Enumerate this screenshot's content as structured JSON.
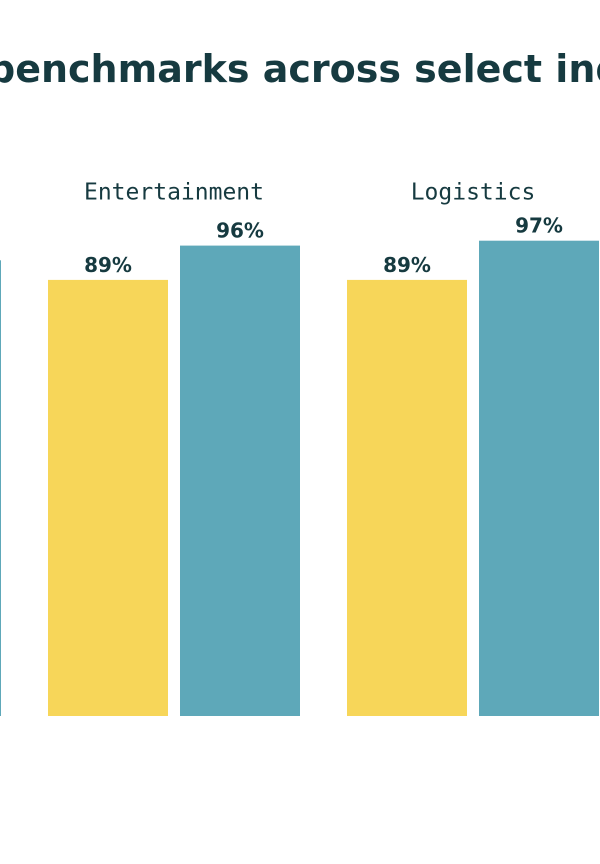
{
  "chart_data": {
    "type": "bar",
    "title": "benchmarks across select ind",
    "categories": [
      null,
      "Entertainment",
      "Logistics"
    ],
    "series": [
      {
        "color": "#f7d659",
        "values": [
          null,
          89,
          89
        ],
        "value_labels": [
          null,
          "89%",
          "89%"
        ]
      },
      {
        "color": "#5ea8b9",
        "values": [
          93,
          96,
          97
        ],
        "value_labels": [
          null,
          "96%",
          "97%"
        ]
      }
    ],
    "ylim": [
      0,
      100
    ]
  }
}
